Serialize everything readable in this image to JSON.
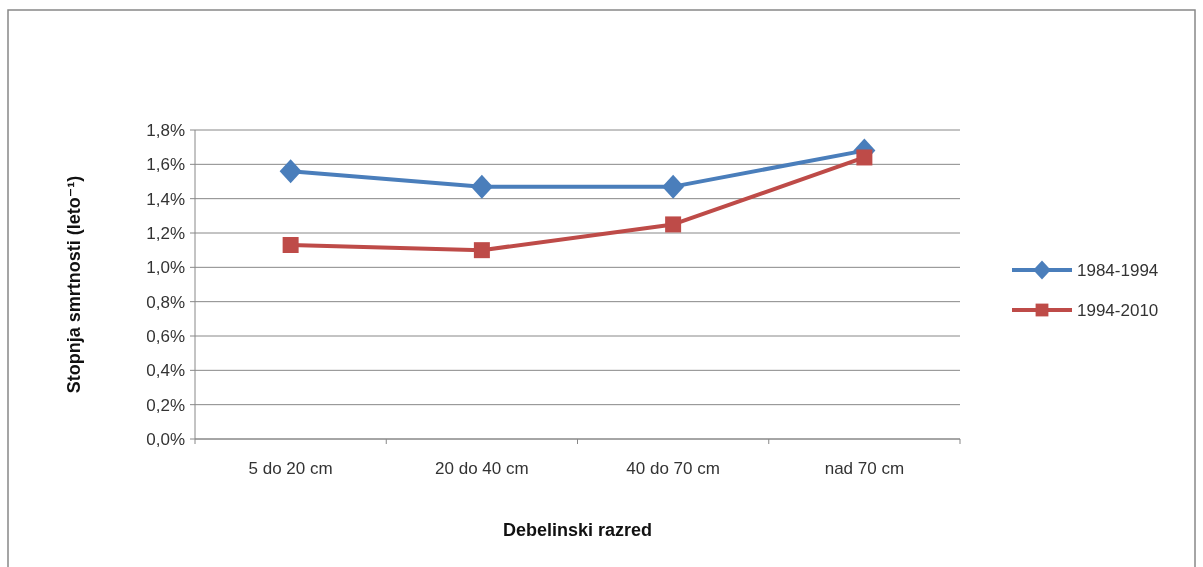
{
  "chart_data": {
    "type": "line",
    "xlabel": "Debelinski razred",
    "ylabel": "Stopnja smrtnosti (leto⁻¹)",
    "categories": [
      "5 do 20 cm",
      "20 do 40 cm",
      "40 do 70 cm",
      "nad 70 cm"
    ],
    "series": [
      {
        "name": "1984-1994",
        "color": "#4a7ebb",
        "marker": "diamond",
        "values": [
          1.56,
          1.47,
          1.47,
          1.68
        ]
      },
      {
        "name": "1994-2010",
        "color": "#be4b48",
        "marker": "square",
        "values": [
          1.13,
          1.1,
          1.25,
          1.64
        ]
      }
    ],
    "ylim": [
      0,
      1.8
    ],
    "yticks": [
      {
        "value": 0,
        "label": "0,0%"
      },
      {
        "value": 0.2,
        "label": "0,2%"
      },
      {
        "value": 0.4,
        "label": "0,4%"
      },
      {
        "value": 0.6,
        "label": "0,6%"
      },
      {
        "value": 0.8,
        "label": "0,8%"
      },
      {
        "value": 1.0,
        "label": "1,0%"
      },
      {
        "value": 1.2,
        "label": "1,2%"
      },
      {
        "value": 1.4,
        "label": "1,4%"
      },
      {
        "value": 1.6,
        "label": "1,6%"
      },
      {
        "value": 1.8,
        "label": "1,8%"
      }
    ],
    "grid": "y",
    "legend": "right"
  }
}
